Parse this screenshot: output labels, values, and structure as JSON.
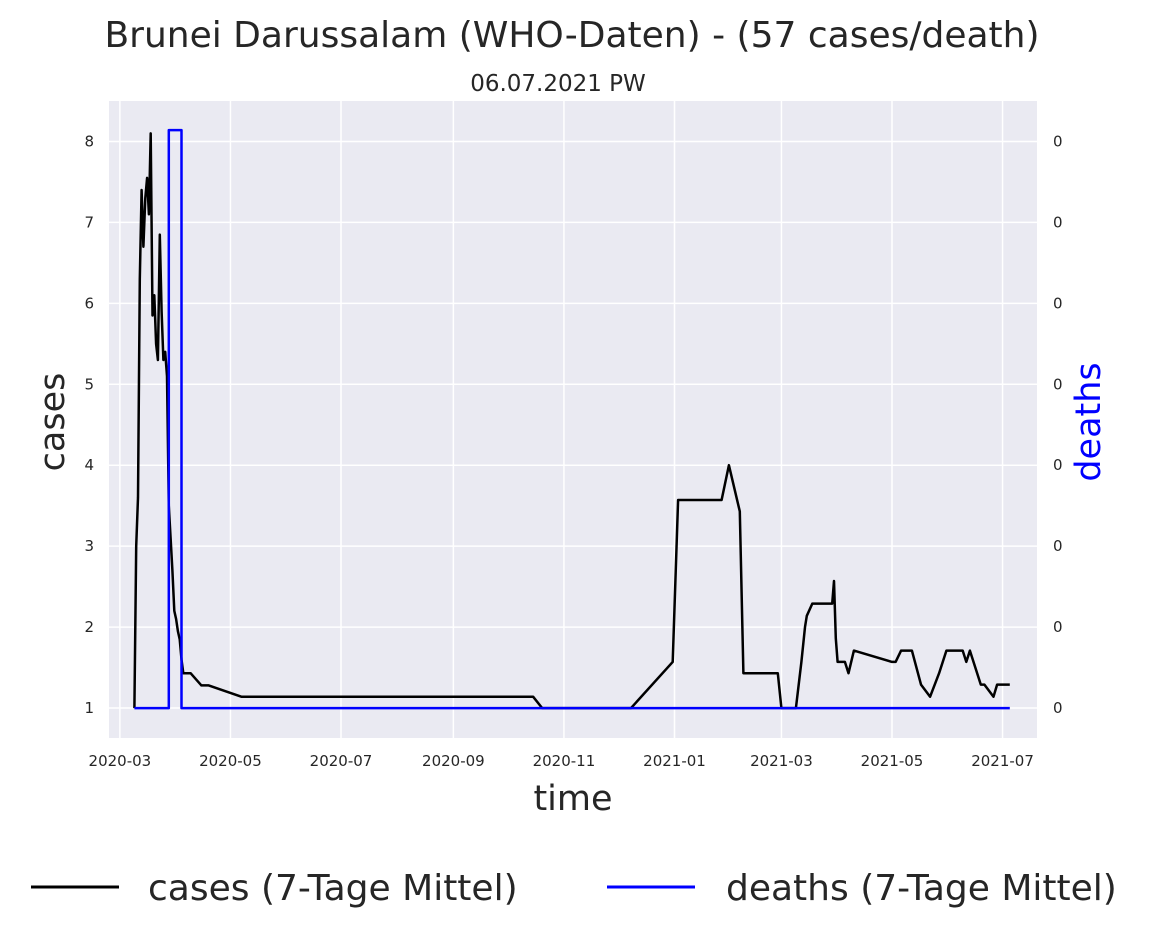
{
  "chart_data": {
    "type": "line",
    "title": "Brunei Darussalam (WHO-Daten) - (57 cases/death)",
    "subtitle": "06.07.2021 PW",
    "xlabel": "time",
    "ylabel": "cases",
    "y2label": "deaths",
    "xlim": [
      "2020-02-24",
      "2021-07-20"
    ],
    "ylim": [
      0.63,
      8.5
    ],
    "y2lim": [
      0.63,
      8.5
    ],
    "x_ticks": [
      "2020-03",
      "2020-05",
      "2020-07",
      "2020-09",
      "2020-11",
      "2021-01",
      "2021-03",
      "2021-05",
      "2021-07"
    ],
    "y_ticks": [
      1,
      2,
      3,
      4,
      5,
      6,
      7,
      8
    ],
    "y2_ticks": [
      1,
      2,
      3,
      4,
      5,
      6,
      7,
      8
    ],
    "y2_tick_labels": [
      "0",
      "0",
      "0",
      "0",
      "0",
      "0",
      "0",
      "0"
    ],
    "grid": true,
    "legend_position": "bottom",
    "colors": {
      "background": "#eaeaf2",
      "grid": "#ffffff",
      "cases": "#000000",
      "deaths": "#0000ff"
    },
    "series": [
      {
        "name": "cases (7-Tage Mittel)",
        "axis": "left",
        "color": "#000000",
        "x": [
          "2020-03-09",
          "2020-03-10",
          "2020-03-11",
          "2020-03-12",
          "2020-03-13",
          "2020-03-14",
          "2020-03-15",
          "2020-03-16",
          "2020-03-17",
          "2020-03-18",
          "2020-03-19",
          "2020-03-20",
          "2020-03-21",
          "2020-03-22",
          "2020-03-23",
          "2020-03-24",
          "2020-03-25",
          "2020-03-26",
          "2020-03-27",
          "2020-03-28",
          "2020-03-29",
          "2020-03-30",
          "2020-03-31",
          "2020-04-01",
          "2020-04-02",
          "2020-04-03",
          "2020-04-04",
          "2020-04-05",
          "2020-04-06",
          "2020-04-07",
          "2020-04-08",
          "2020-04-09",
          "2020-04-15",
          "2020-04-19",
          "2020-05-07",
          "2020-10-15",
          "2020-10-20",
          "2020-12-08",
          "2020-12-31",
          "2021-01-03",
          "2021-01-27",
          "2021-01-31",
          "2021-02-06",
          "2021-02-08",
          "2021-02-27",
          "2021-03-01",
          "2021-03-06",
          "2021-03-09",
          "2021-03-12",
          "2021-03-14",
          "2021-03-15",
          "2021-03-18",
          "2021-03-29",
          "2021-03-30",
          "2021-03-31",
          "2021-04-01",
          "2021-04-05",
          "2021-04-07",
          "2021-04-10",
          "2021-05-01",
          "2021-05-03",
          "2021-05-06",
          "2021-05-12",
          "2021-05-17",
          "2021-05-22",
          "2021-05-27",
          "2021-05-31",
          "2021-06-09",
          "2021-06-11",
          "2021-06-13",
          "2021-06-19",
          "2021-06-21",
          "2021-06-26",
          "2021-06-28",
          "2021-07-05"
        ],
        "values": [
          1,
          3,
          3.6,
          6.3,
          7.4,
          6.7,
          7.3,
          7.55,
          7.1,
          8.1,
          5.85,
          6.1,
          5.5,
          5.3,
          6.85,
          5.9,
          5.3,
          5.4,
          5.1,
          3.5,
          3.1,
          2.7,
          2.2,
          2.1,
          1.95,
          1.85,
          1.6,
          1.43,
          1.43,
          1.43,
          1.43,
          1.43,
          1.28,
          1.28,
          1.14,
          1.14,
          1,
          1,
          1.57,
          3.57,
          3.57,
          4,
          3.43,
          1.43,
          1.43,
          1,
          1,
          1,
          1.57,
          2,
          2.14,
          2.29,
          2.29,
          2.57,
          1.86,
          1.57,
          1.57,
          1.43,
          1.71,
          1.57,
          1.57,
          1.71,
          1.71,
          1.29,
          1.14,
          1.43,
          1.71,
          1.71,
          1.57,
          1.71,
          1.29,
          1.29,
          1.14,
          1.29,
          1.29
        ]
      },
      {
        "name": "deaths (7-Tage Mittel)",
        "axis": "right",
        "color": "#0000ff",
        "x": [
          "2020-03-09",
          "2020-03-28",
          "2020-03-28",
          "2020-04-04",
          "2020-04-04",
          "2021-07-05"
        ],
        "values": [
          1,
          1,
          8.14,
          8.14,
          1,
          1
        ]
      }
    ]
  }
}
